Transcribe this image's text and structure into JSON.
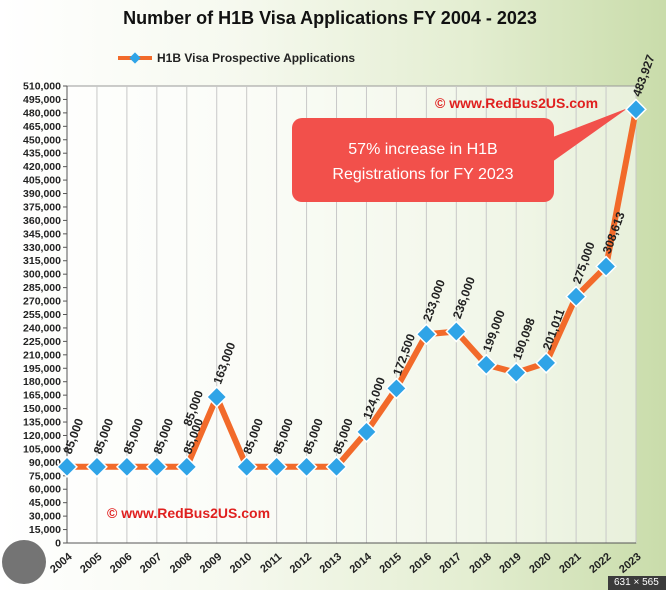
{
  "chart_data": {
    "type": "line",
    "title": "Number of H1B Visa Applications FY 2004 - 2023",
    "legend": {
      "label": "H1B Visa Prospective Applications",
      "position": "top"
    },
    "categories": [
      "2004",
      "2005",
      "2006",
      "2007",
      "2008",
      "2009",
      "2010",
      "2011",
      "2012",
      "2013",
      "2014",
      "2015",
      "2016",
      "2017",
      "2018",
      "2019",
      "2020",
      "2021",
      "2022",
      "2023"
    ],
    "series": [
      {
        "name": "H1B Visa Prospective Applications",
        "values": [
          85000,
          85000,
          85000,
          85000,
          85000,
          163000,
          85000,
          85000,
          85000,
          85000,
          124000,
          172500,
          233000,
          236000,
          199000,
          190098,
          201011,
          275000,
          308613,
          483927
        ],
        "data_labels": [
          "85,000",
          "85,000",
          "85,000",
          "85,000",
          "85,000",
          "163,000",
          "85,000",
          "85,000",
          "85,000",
          "85,000",
          "124,000",
          "172,500",
          "233,000",
          "236,000",
          "199,000",
          "190,098",
          "201,011",
          "275,000",
          "308,613",
          "483,927"
        ],
        "line_color": "#f26a2a",
        "marker_color": "#2fa4e7"
      }
    ],
    "extra_label": "85,000",
    "ylim": [
      0,
      510000
    ],
    "y_step": 15000,
    "grid": "vertical",
    "watermark": "© www.RedBus2US.com",
    "callout": {
      "lines": [
        "57% increase in H1B",
        "Registrations for FY 2023"
      ],
      "color": "#f2504b"
    }
  },
  "badge_text": "631 × 565",
  "colors": {
    "background": "#f6f9ef",
    "axis": "#555555",
    "grid": "#c8c8c8",
    "watermark": "#e0201f"
  }
}
